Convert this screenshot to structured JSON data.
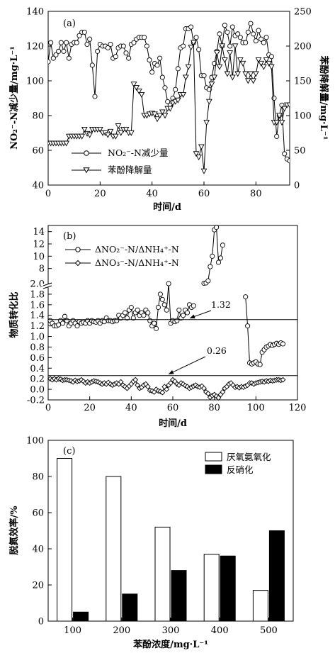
{
  "chart_data": [
    {
      "panel": "(a)",
      "type": "line",
      "xlabel": "时间/d",
      "ylabel": "NO₂⁻-N减少量/mg·L⁻¹",
      "ylabel_right": "苯酚降解量/mg·L⁻¹",
      "xlim": [
        0,
        93
      ],
      "ylim": [
        40,
        140
      ],
      "ylim_right": [
        0,
        250
      ],
      "xticks": [
        0,
        20,
        40,
        60,
        80
      ],
      "yticks": [
        40,
        60,
        80,
        100,
        120,
        140
      ],
      "yticks_right": [
        0,
        50,
        100,
        150,
        200,
        250
      ],
      "grid": false,
      "legend_position": "bottom-left",
      "series": [
        {
          "name": "NO₂⁻-N减少量",
          "marker": "circle",
          "axis": "left",
          "x": [
            0,
            1,
            2,
            3,
            4,
            5,
            6,
            7,
            8,
            9,
            10,
            11,
            12,
            13,
            14,
            15,
            16,
            17,
            18,
            19,
            20,
            21,
            22,
            23,
            24,
            25,
            26,
            27,
            28,
            29,
            30,
            31,
            32,
            33,
            34,
            35,
            36,
            37,
            38,
            39,
            40,
            41,
            42,
            43,
            44,
            45,
            46,
            47,
            48,
            49,
            50,
            51,
            52,
            53,
            54,
            55,
            56,
            57,
            58,
            59,
            60,
            61,
            62,
            63,
            64,
            65,
            66,
            67,
            68,
            69,
            70,
            71,
            72,
            73,
            74,
            75,
            76,
            77,
            78,
            79,
            80,
            81,
            82,
            83,
            84,
            85,
            86,
            87,
            88,
            89,
            90,
            91,
            92,
            93
          ],
          "y": [
            111,
            122,
            113,
            115,
            117,
            122,
            117,
            122,
            113,
            121,
            122,
            122,
            126,
            128,
            128,
            121,
            124,
            109,
            91,
            117,
            121,
            120,
            120,
            119,
            121,
            113,
            114,
            119,
            120,
            120,
            116,
            113,
            121,
            122,
            124,
            125,
            125,
            125,
            120,
            112,
            105,
            110,
            109,
            113,
            102,
            96,
            88,
            86,
            90,
            95,
            107,
            119,
            120,
            130,
            130,
            131,
            122,
            125,
            118,
            103,
            103,
            96,
            95,
            102,
            110,
            117,
            127,
            120,
            132,
            128,
            120,
            131,
            126,
            127,
            125,
            122,
            122,
            128,
            133,
            127,
            123,
            129,
            124,
            122,
            125,
            115,
            114,
            90,
            68,
            80,
            86,
            58,
            55,
            54
          ]
        },
        {
          "name": "苯酚降解量",
          "marker": "triangle-down",
          "axis": "right",
          "x": [
            0,
            1,
            2,
            3,
            4,
            5,
            6,
            7,
            8,
            9,
            10,
            11,
            12,
            13,
            14,
            15,
            16,
            17,
            18,
            19,
            20,
            21,
            22,
            23,
            24,
            25,
            26,
            27,
            28,
            29,
            30,
            31,
            32,
            33,
            34,
            35,
            36,
            37,
            38,
            39,
            40,
            41,
            42,
            43,
            44,
            45,
            46,
            47,
            48,
            49,
            50,
            51,
            52,
            53,
            54,
            55,
            56,
            57,
            58,
            59,
            60,
            61,
            62,
            63,
            64,
            65,
            66,
            67,
            68,
            69,
            70,
            71,
            72,
            73,
            74,
            75,
            76,
            77,
            78,
            79,
            80,
            81,
            82,
            83,
            84,
            85,
            86,
            87,
            88,
            89,
            90,
            91,
            92,
            93
          ],
          "y": [
            60,
            60,
            60,
            60,
            60,
            60,
            60,
            60,
            70,
            70,
            70,
            70,
            70,
            70,
            80,
            74,
            72,
            80,
            80,
            80,
            80,
            75,
            75,
            72,
            77,
            70,
            70,
            85,
            75,
            80,
            80,
            75,
            75,
            145,
            140,
            135,
            130,
            100,
            100,
            102,
            103,
            102,
            95,
            100,
            105,
            100,
            110,
            110,
            118,
            120,
            122,
            130,
            130,
            155,
            170,
            198,
            205,
            45,
            40,
            55,
            20,
            90,
            120,
            145,
            155,
            190,
            170,
            200,
            180,
            160,
            190,
            155,
            200,
            160,
            180,
            175,
            160,
            150,
            160,
            150,
            160,
            180,
            175,
            170,
            180,
            175,
            170,
            90,
            90,
            100,
            90,
            110,
            115,
            115
          ]
        }
      ]
    },
    {
      "panel": "(b)",
      "type": "line",
      "xlabel": "时间/d",
      "ylabel": "物质转化比",
      "xlim": [
        0,
        120
      ],
      "ylim_lower": [
        -0.2,
        2.0
      ],
      "ylim_upper": [
        6,
        15
      ],
      "axis_break": true,
      "xticks": [
        0,
        20,
        40,
        60,
        80,
        100,
        120
      ],
      "yticks_lower": [
        -0.2,
        0.0,
        0.2,
        0.4,
        0.6,
        0.8,
        1.0,
        1.2,
        1.4,
        1.6,
        1.8,
        2.0
      ],
      "yticks_upper": [
        8,
        10,
        12,
        14
      ],
      "grid": false,
      "legend_position": "top-left",
      "reference_lines": [
        {
          "y": 1.32,
          "label": "1.32"
        },
        {
          "y": 0.26,
          "label": "0.26"
        }
      ],
      "series": [
        {
          "name": "ΔNO₂⁻-N/ΔNH₄⁺-N",
          "marker": "circle",
          "x": [
            1,
            2,
            3,
            4,
            5,
            6,
            7,
            8,
            9,
            10,
            11,
            12,
            13,
            14,
            15,
            16,
            17,
            18,
            19,
            20,
            21,
            22,
            23,
            24,
            25,
            26,
            27,
            28,
            29,
            30,
            31,
            32,
            33,
            34,
            35,
            36,
            37,
            38,
            39,
            40,
            41,
            42,
            43,
            44,
            45,
            46,
            47,
            48,
            49,
            50,
            51,
            52,
            53,
            54,
            55,
            56,
            57,
            58,
            59,
            60,
            61,
            62,
            63,
            64,
            65,
            66,
            67,
            68,
            69,
            70,
            75,
            76,
            77,
            78,
            79,
            80,
            81,
            82,
            83,
            84,
            95,
            96,
            97,
            98,
            99,
            100,
            101,
            102,
            103,
            104,
            105,
            106,
            107,
            108,
            109,
            110,
            111,
            112,
            113
          ],
          "y": [
            1.3,
            1.25,
            1.2,
            1.2,
            1.22,
            1.3,
            1.25,
            1.38,
            1.3,
            1.2,
            1.25,
            1.3,
            1.25,
            1.2,
            1.28,
            1.25,
            1.27,
            1.25,
            1.3,
            1.25,
            1.3,
            1.28,
            1.27,
            1.3,
            1.25,
            1.3,
            1.28,
            1.35,
            1.3,
            1.3,
            1.28,
            1.3,
            1.3,
            1.4,
            1.35,
            1.4,
            1.45,
            1.35,
            1.5,
            1.55,
            1.35,
            1.45,
            1.5,
            1.4,
            1.45,
            1.4,
            1.5,
            1.45,
            1.3,
            1.2,
            1.25,
            1.15,
            1.55,
            1.8,
            1.7,
            1.6,
            1.5,
            2.0,
            1.25,
            1.3,
            1.28,
            1.3,
            1.5,
            1.35,
            1.4,
            1.5,
            1.45,
            1.6,
            1.55,
            1.58,
            2.5,
            3.0,
            6.0,
            8.3,
            10.0,
            14.3,
            14.7,
            9.0,
            9.7,
            11.8,
            1.75,
            1.2,
            0.5,
            0.48,
            0.5,
            0.52,
            0.48,
            0.47,
            0.7,
            0.75,
            0.8,
            0.82,
            0.85,
            0.83,
            0.85,
            0.87,
            0.85,
            0.88,
            0.86
          ]
        },
        {
          "name": "ΔNO₃⁻-N/ΔNH₄⁺-N",
          "marker": "diamond",
          "x": [
            1,
            2,
            3,
            4,
            5,
            6,
            7,
            8,
            9,
            10,
            11,
            12,
            13,
            14,
            15,
            16,
            17,
            18,
            19,
            20,
            21,
            22,
            23,
            24,
            25,
            26,
            27,
            28,
            29,
            30,
            31,
            32,
            33,
            34,
            35,
            36,
            37,
            38,
            39,
            40,
            41,
            42,
            43,
            44,
            45,
            46,
            47,
            48,
            49,
            50,
            51,
            52,
            53,
            54,
            55,
            56,
            57,
            58,
            59,
            60,
            61,
            62,
            63,
            64,
            65,
            66,
            67,
            68,
            69,
            70,
            71,
            72,
            73,
            74,
            75,
            76,
            77,
            78,
            79,
            80,
            81,
            82,
            83,
            84,
            85,
            86,
            87,
            88,
            89,
            90,
            91,
            92,
            93,
            94,
            95,
            96,
            97,
            98,
            99,
            100,
            101,
            102,
            103,
            104,
            105,
            106,
            107,
            108,
            109,
            110,
            111,
            112,
            113
          ],
          "y": [
            0.2,
            0.18,
            0.2,
            0.18,
            0.2,
            0.19,
            0.17,
            0.18,
            0.18,
            0.17,
            0.16,
            0.14,
            0.17,
            0.15,
            0.16,
            0.18,
            0.15,
            0.12,
            0.14,
            0.12,
            0.14,
            0.16,
            0.15,
            0.14,
            0.12,
            0.1,
            0.12,
            0.1,
            0.13,
            0.1,
            0.08,
            0.1,
            0.12,
            0.1,
            0.14,
            0.08,
            0.05,
            0.02,
            0.06,
            0.1,
            0.15,
            0.18,
            0.08,
            0.02,
            0.04,
            0.08,
            0.1,
            0.05,
            -0.02,
            -0.03,
            -0.05,
            0.0,
            -0.03,
            -0.04,
            -0.06,
            0.05,
            0.0,
            0.08,
            0.12,
            0.18,
            0.15,
            0.1,
            0.08,
            0.12,
            0.1,
            0.07,
            0.05,
            0.02,
            0.04,
            0.06,
            0.08,
            0.05,
            0.04,
            0.06,
            0.02,
            -0.05,
            -0.08,
            -0.15,
            -0.12,
            -0.1,
            -0.13,
            -0.16,
            -0.1,
            -0.05,
            0.02,
            0.05,
            0.1,
            0.12,
            0.08,
            0.04,
            0.05,
            0.03,
            0.05,
            0.04,
            0.06,
            0.08,
            0.12,
            0.12,
            0.1,
            0.12,
            0.13,
            0.14,
            0.15,
            0.14,
            0.16,
            0.15,
            0.17,
            0.16,
            0.17,
            0.18,
            0.18,
            0.17,
            0.18
          ]
        }
      ]
    },
    {
      "panel": "(c)",
      "type": "bar",
      "xlabel": "苯酚浓度/mg·L⁻¹",
      "ylabel": "脱氮效率/%",
      "categories": [
        "100",
        "200",
        "300",
        "400",
        "500"
      ],
      "ylim": [
        0,
        100
      ],
      "yticks": [
        0,
        20,
        40,
        60,
        80,
        100
      ],
      "grid": false,
      "legend_position": "top-right",
      "series": [
        {
          "name": "厌氧氨氧化",
          "color": "#ffffff",
          "values": [
            90,
            80,
            52,
            37,
            17
          ]
        },
        {
          "name": "反硝化",
          "color": "#000000",
          "values": [
            5,
            15,
            28,
            36,
            50
          ]
        }
      ]
    }
  ]
}
